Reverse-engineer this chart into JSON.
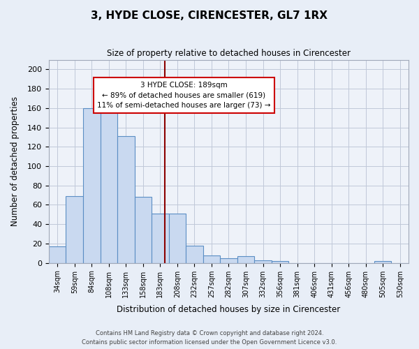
{
  "title": "3, HYDE CLOSE, CIRENCESTER, GL7 1RX",
  "subtitle": "Size of property relative to detached houses in Cirencester",
  "xlabel": "Distribution of detached houses by size in Cirencester",
  "ylabel": "Number of detached properties",
  "categories": [
    "34sqm",
    "59sqm",
    "84sqm",
    "108sqm",
    "133sqm",
    "158sqm",
    "183sqm",
    "208sqm",
    "232sqm",
    "257sqm",
    "282sqm",
    "307sqm",
    "332sqm",
    "356sqm",
    "381sqm",
    "406sqm",
    "431sqm",
    "456sqm",
    "480sqm",
    "505sqm",
    "530sqm"
  ],
  "bar_values": [
    17,
    69,
    160,
    163,
    131,
    68,
    51,
    51,
    18,
    8,
    5,
    7,
    3,
    2,
    0,
    0,
    0,
    0,
    0,
    2,
    0
  ],
  "bar_color": "#c9d9f0",
  "bar_edge_color": "#5b8ec4",
  "ylim": [
    0,
    210
  ],
  "yticks": [
    0,
    20,
    40,
    60,
    80,
    100,
    120,
    140,
    160,
    180,
    200
  ],
  "red_line_x": 6.75,
  "annotation_title": "3 HYDE CLOSE: 189sqm",
  "annotation_line1": "← 89% of detached houses are smaller (619)",
  "annotation_line2": "11% of semi-detached houses are larger (73) →",
  "footer1": "Contains HM Land Registry data © Crown copyright and database right 2024.",
  "footer2": "Contains public sector information licensed under the Open Government Licence v3.0.",
  "bg_color": "#e8eef7",
  "plot_bg_color": "#eef2f9"
}
